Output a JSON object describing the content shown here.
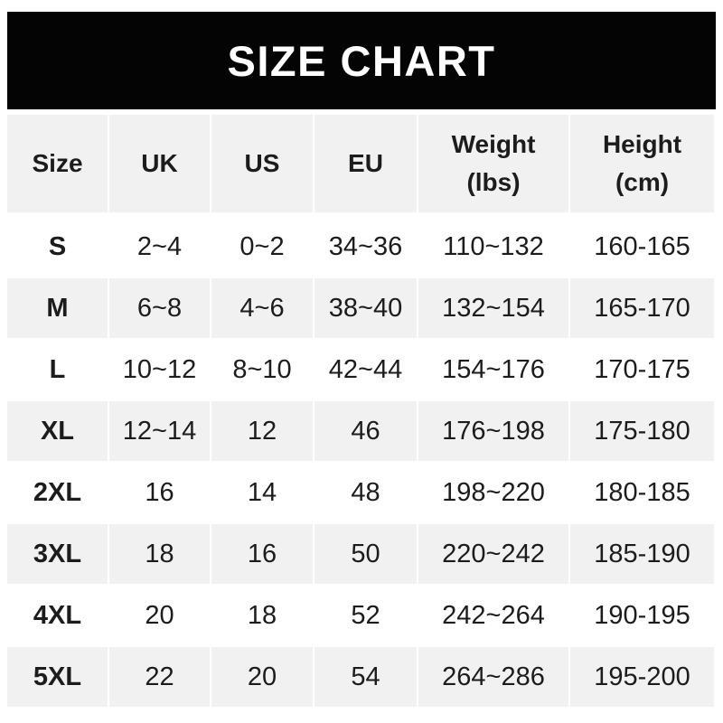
{
  "banner": {
    "title": "SIZE CHART"
  },
  "chart_data": {
    "type": "table",
    "title": "SIZE CHART",
    "columns": [
      {
        "label": "Size",
        "sub": ""
      },
      {
        "label": "UK",
        "sub": ""
      },
      {
        "label": "US",
        "sub": ""
      },
      {
        "label": "EU",
        "sub": ""
      },
      {
        "label": "Weight",
        "sub": "(lbs)"
      },
      {
        "label": "Height",
        "sub": "(cm)"
      }
    ],
    "rows": [
      [
        "S",
        "2~4",
        "0~2",
        "34~36",
        "110~132",
        "160-165"
      ],
      [
        "M",
        "6~8",
        "4~6",
        "38~40",
        "132~154",
        "165-170"
      ],
      [
        "L",
        "10~12",
        "8~10",
        "42~44",
        "154~176",
        "170-175"
      ],
      [
        "XL",
        "12~14",
        "12",
        "46",
        "176~198",
        "175-180"
      ],
      [
        "2XL",
        "16",
        "14",
        "48",
        "198~220",
        "180-185"
      ],
      [
        "3XL",
        "18",
        "16",
        "50",
        "220~242",
        "185-190"
      ],
      [
        "4XL",
        "20",
        "18",
        "52",
        "242~264",
        "190-195"
      ],
      [
        "5XL",
        "22",
        "20",
        "54",
        "264~286",
        "195-200"
      ]
    ],
    "layout": {
      "striped": true,
      "stripe_color": "#f1f1f1",
      "banner_bg": "#040404",
      "banner_fg": "#ffffff",
      "text_color": "#1c1c1c"
    }
  }
}
